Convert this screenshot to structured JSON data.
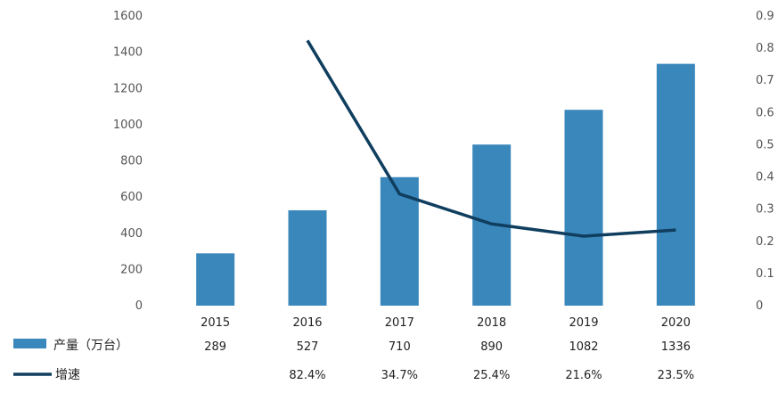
{
  "chart_data": {
    "type": "bar",
    "categories": [
      "2015",
      "2016",
      "2017",
      "2018",
      "2019",
      "2020"
    ],
    "series": [
      {
        "name": "产量（万台）",
        "type": "bar",
        "axis": "left",
        "values": [
          289,
          527,
          710,
          890,
          1082,
          1336
        ],
        "labels": [
          "289",
          "527",
          "710",
          "890",
          "1082",
          "1336"
        ]
      },
      {
        "name": "增速",
        "type": "line",
        "axis": "right",
        "values": [
          null,
          0.824,
          0.347,
          0.254,
          0.216,
          0.235
        ],
        "labels": [
          "",
          "82.4%",
          "34.7%",
          "25.4%",
          "21.6%",
          "23.5%"
        ]
      }
    ],
    "ylim": [
      0,
      1600
    ],
    "y_ticks": [
      "0",
      "200",
      "400",
      "600",
      "800",
      "1000",
      "1200",
      "1400",
      "1600"
    ],
    "y2lim": [
      0,
      0.9
    ],
    "y2_ticks": [
      "0",
      "0.1",
      "0.2",
      "0.3",
      "0.4",
      "0.5",
      "0.6",
      "0.7",
      "0.8",
      "0.9"
    ],
    "grid": false,
    "legend": "data-table-below",
    "colors": {
      "bar": "#3a87bc",
      "line": "#0f3e5f"
    }
  }
}
